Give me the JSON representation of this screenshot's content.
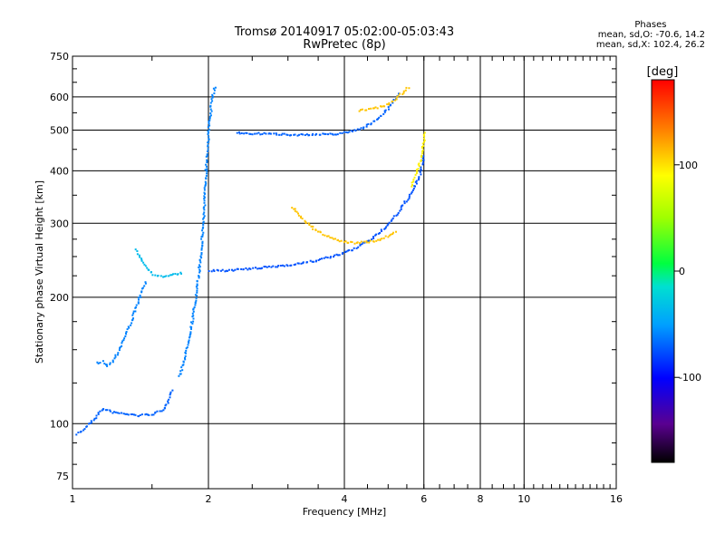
{
  "header": {
    "title": "Tromsø 20140917 05:02:00-05:03:43",
    "subtitle": "RwPretec (8p)"
  },
  "phases": {
    "title": "Phases",
    "line_o": "mean, sd,O: -70.6, 14.2",
    "line_x": "mean, sd,X: 102.4, 26.2"
  },
  "colorbar": {
    "label": "[deg]",
    "ticks": [
      "100",
      "0",
      "-100"
    ],
    "tick_values": [
      100,
      0,
      -100
    ],
    "range": [
      -180,
      180
    ]
  },
  "chart_data": {
    "type": "scatter",
    "xlabel": "Frequency [MHz]",
    "ylabel": "Stationary phase Virtual Height [km]",
    "x_scale": "log",
    "y_scale": "log",
    "xlim": [
      1,
      16
    ],
    "ylim": [
      70,
      750
    ],
    "x_ticks": [
      1,
      2,
      4,
      6,
      8,
      10,
      16
    ],
    "x_tick_labels": [
      "1",
      "2",
      "4",
      "6",
      "8",
      "10",
      "16"
    ],
    "y_ticks": [
      75,
      100,
      200,
      300,
      400,
      500,
      600,
      750
    ],
    "y_tick_labels": [
      "75",
      "100",
      "200",
      "300",
      "400",
      "500",
      "600",
      "750"
    ],
    "grid": true,
    "color_by": "phase [deg]",
    "series": [
      {
        "trace": "low-band-trace",
        "phase": -70,
        "x": [
          1.02,
          1.05,
          1.08,
          1.12,
          1.16,
          1.22,
          1.3,
          1.4,
          1.5,
          1.58,
          1.62,
          1.66
        ],
        "y": [
          95,
          97,
          100,
          104,
          109,
          107,
          106,
          105,
          106,
          108,
          113,
          122
        ]
      },
      {
        "trace": "low-hook-trace",
        "phase": -60,
        "x": [
          1.13,
          1.16,
          1.19,
          1.22,
          1.26,
          1.3,
          1.35,
          1.4,
          1.45
        ],
        "y": [
          140,
          141,
          138,
          141,
          150,
          162,
          178,
          200,
          220
        ]
      },
      {
        "trace": "mid-ramp-trace",
        "phase": -35,
        "x": [
          1.38,
          1.42,
          1.46,
          1.5,
          1.56,
          1.62,
          1.68,
          1.75
        ],
        "y": [
          260,
          245,
          235,
          228,
          225,
          226,
          228,
          230
        ]
      },
      {
        "trace": "e-cusp-trace",
        "phase": -60,
        "x": [
          1.72,
          1.78,
          1.84,
          1.88,
          1.92,
          1.95,
          1.97,
          2.0,
          2.03,
          2.06
        ],
        "y": [
          130,
          150,
          180,
          210,
          260,
          330,
          420,
          520,
          600,
          640
        ]
      },
      {
        "trace": "f1-o-trace",
        "phase": -75,
        "x": [
          2.0,
          2.2,
          2.5,
          2.8,
          3.1,
          3.4,
          3.8,
          4.2,
          4.6,
          5.0,
          5.3,
          5.6,
          5.85,
          5.98
        ],
        "y": [
          232,
          233,
          235,
          238,
          241,
          245,
          252,
          262,
          278,
          300,
          325,
          355,
          390,
          440
        ]
      },
      {
        "trace": "f1-x-trace",
        "phase": 110,
        "x": [
          3.05,
          3.2,
          3.4,
          3.6,
          3.8,
          4.0,
          4.2,
          4.4,
          4.6,
          4.8,
          5.0,
          5.2
        ],
        "y": [
          330,
          310,
          293,
          283,
          276,
          272,
          271,
          272,
          273,
          276,
          282,
          290
        ]
      },
      {
        "trace": "f2-x-trace",
        "phase": 95,
        "x": [
          5.6,
          5.75,
          5.85,
          5.92,
          5.98,
          6.02
        ],
        "y": [
          370,
          395,
          420,
          450,
          480,
          500
        ]
      },
      {
        "trace": "upper-o-trace",
        "phase": -70,
        "x": [
          2.3,
          2.5,
          2.8,
          3.1,
          3.5,
          3.9,
          4.3,
          4.7,
          5.0,
          5.3
        ],
        "y": [
          495,
          493,
          492,
          490,
          490,
          493,
          505,
          530,
          570,
          620
        ]
      },
      {
        "trace": "upper-x-trace",
        "phase": 110,
        "x": [
          4.3,
          4.6,
          4.9,
          5.1,
          5.3,
          5.55
        ],
        "y": [
          560,
          565,
          575,
          590,
          610,
          640
        ]
      }
    ]
  }
}
